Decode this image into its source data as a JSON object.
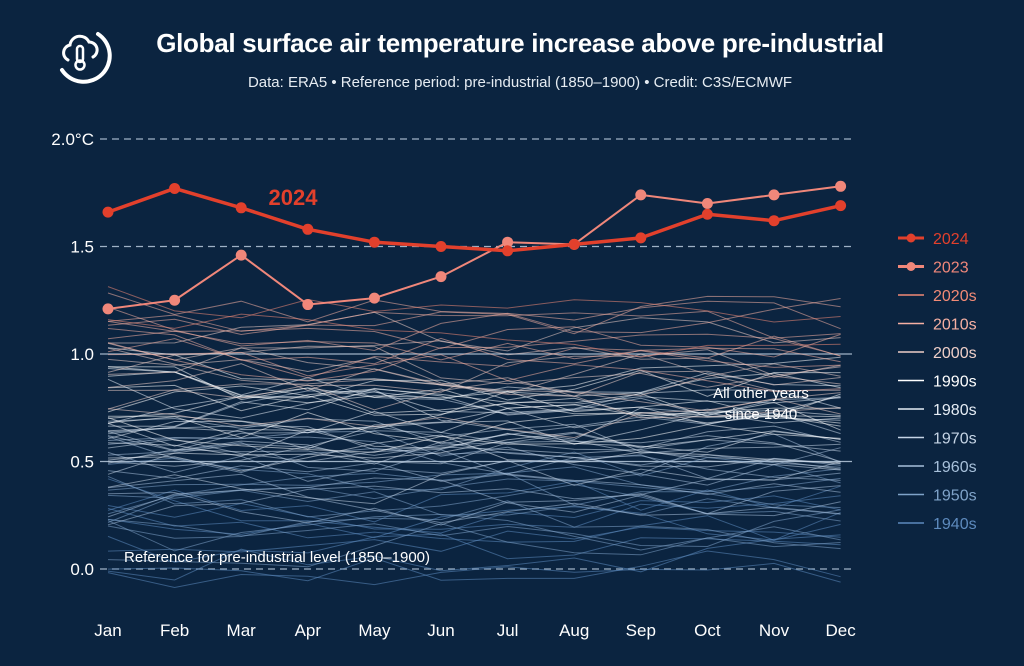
{
  "header": {
    "title": "Global surface air temperature increase above pre-industrial",
    "subtitle": "Data: ERA5 • Reference period: pre-industrial (1850–1900) • Credit: C3S/ECMWF",
    "logo_icon": "cloud-thermometer-icon"
  },
  "chart_data": {
    "type": "line",
    "title": "Global surface air temperature increase above pre-industrial",
    "xlabel": "",
    "ylabel": "",
    "ylim": [
      -0.2,
      2.0
    ],
    "y_ticks": [
      {
        "value": 2.0,
        "label": "2.0°C"
      },
      {
        "value": 1.5,
        "label": "1.5"
      },
      {
        "value": 1.0,
        "label": "1.0"
      },
      {
        "value": 0.5,
        "label": "0.5"
      },
      {
        "value": 0.0,
        "label": "0.0"
      }
    ],
    "categories": [
      "Jan",
      "Feb",
      "Mar",
      "Apr",
      "May",
      "Jun",
      "Jul",
      "Aug",
      "Sep",
      "Oct",
      "Nov",
      "Dec"
    ],
    "series": [
      {
        "name": "2024",
        "color": "#e2402c",
        "values": [
          1.66,
          1.77,
          1.68,
          1.58,
          1.52,
          1.5,
          1.48,
          1.51,
          1.54,
          1.65,
          1.62,
          1.69
        ]
      },
      {
        "name": "2023",
        "color": "#f0877a",
        "values": [
          1.21,
          1.25,
          1.46,
          1.23,
          1.26,
          1.36,
          1.52,
          1.51,
          1.74,
          1.7,
          1.74,
          1.78
        ]
      }
    ],
    "decade_legend": [
      {
        "label": "2020s",
        "color": "#f28a76"
      },
      {
        "label": "2010s",
        "color": "#f6b0a3"
      },
      {
        "label": "2000s",
        "color": "#efcfc8"
      },
      {
        "label": "1990s",
        "color": "#ffffff"
      },
      {
        "label": "1980s",
        "color": "#e6edf5"
      },
      {
        "label": "1970s",
        "color": "#c6d5e6"
      },
      {
        "label": "1960s",
        "color": "#a7c0da"
      },
      {
        "label": "1950s",
        "color": "#7fa3c9"
      },
      {
        "label": "1940s",
        "color": "#5d8abd"
      }
    ],
    "annotations": {
      "label_2024": "2024",
      "other_years_line1": "All other years",
      "other_years_line2": "since 1940",
      "reference": "Reference for pre-industrial level (1850–1900)"
    },
    "grid": "horizontal dashed"
  }
}
